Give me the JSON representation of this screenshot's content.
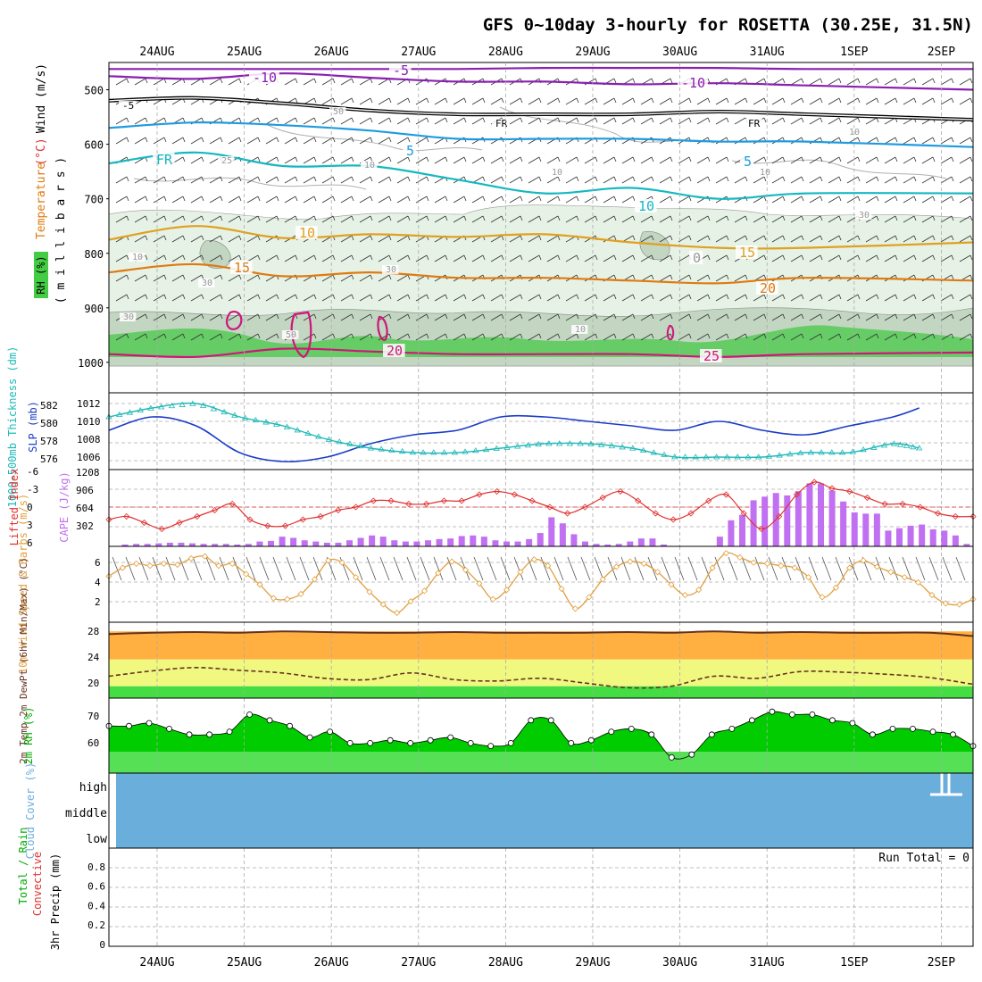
{
  "title": "GFS 0~10day 3-hourly for ROSETTA (30.25E, 31.5N)",
  "colors": {
    "temp_purple": "#8a1fb0",
    "fr_black": "#000000",
    "blue": "#1e9be0",
    "teal": "#15b8c0",
    "orange15": "#e0a020",
    "orange20": "#e07a10",
    "magenta": "#d0157a",
    "rh_light": "#e6f2e6",
    "rh_mid": "#c2d6c2",
    "rh_green": "#66cc66",
    "slp": "#1a3cc8",
    "thick": "#20b8b8",
    "li": "#e03030",
    "cape": "#c070f0",
    "wind": "#e0a040",
    "t2m_fill": "#ffb040",
    "dew_fill": "#f0f880",
    "low_fill": "#44dd44",
    "rh2_dark": "#00cc00",
    "rh2_light": "#55e055",
    "cloud": "#6aaedc",
    "grid": "#aaaaaa"
  },
  "chart_data": [
    {
      "type": "line",
      "panel": "upper-air",
      "ylabel_parts": [
        "RH (%)",
        "Temperature",
        "(°C)",
        "Wind (m/s)"
      ],
      "ylabel_millibars": "( m i l l i b a r s )",
      "x_dates": [
        "24AUG",
        "25AUG",
        "26AUG",
        "27AUG",
        "28AUG",
        "29AUG",
        "30AUG",
        "31AUG",
        "1SEP",
        "2SEP"
      ],
      "y_ticks": [
        "500",
        "600",
        "700",
        "800",
        "900",
        "1000"
      ],
      "ylim": [
        1000,
        450
      ],
      "isotherm_labels": [
        "-5",
        "-10",
        "-10",
        "-5",
        "FR",
        "FR",
        "FR",
        "5",
        "5",
        "10",
        "10",
        "15",
        "15",
        "20",
        "20",
        "25",
        "25",
        "10",
        "10",
        "10",
        "10",
        "30",
        "30",
        "30",
        "50",
        "10",
        "10",
        "0",
        "50",
        "30"
      ],
      "series": [
        {
          "name": "-10",
          "x": [
            0,
            2.5,
            4,
            5,
            6,
            7,
            8,
            9.3
          ],
          "values": [
            462,
            462,
            462,
            460,
            460,
            460,
            462,
            462
          ]
        },
        {
          "name": "-5",
          "x": [
            0,
            1,
            2,
            3,
            4,
            5,
            6,
            7,
            8,
            9.3
          ],
          "values": [
            475,
            480,
            470,
            478,
            485,
            485,
            490,
            488,
            492,
            500
          ]
        },
        {
          "name": "FR",
          "x": [
            0,
            1,
            2,
            3,
            4,
            5,
            6,
            7,
            8,
            9.3
          ],
          "values": [
            520,
            515,
            525,
            538,
            545,
            545,
            545,
            540,
            545,
            555
          ]
        },
        {
          "name": "5",
          "x": [
            0,
            1,
            2,
            3,
            4,
            5,
            6,
            7,
            8,
            9.3
          ],
          "values": [
            570,
            560,
            565,
            575,
            590,
            590,
            590,
            595,
            595,
            605
          ]
        },
        {
          "name": "10",
          "x": [
            0,
            1,
            2,
            3,
            4,
            5,
            6,
            7,
            8,
            9.3
          ],
          "values": [
            635,
            615,
            640,
            640,
            665,
            690,
            680,
            700,
            690,
            690
          ]
        },
        {
          "name": "15",
          "x": [
            0,
            1,
            2,
            3,
            4,
            5,
            6,
            7,
            8,
            9.3
          ],
          "values": [
            775,
            750,
            772,
            765,
            770,
            765,
            780,
            790,
            790,
            780
          ]
        },
        {
          "name": "20",
          "x": [
            0,
            1,
            2,
            3,
            4,
            5,
            6,
            7,
            8,
            9.3
          ],
          "values": [
            835,
            820,
            842,
            835,
            845,
            845,
            850,
            855,
            845,
            850
          ]
        },
        {
          "name": "25",
          "x": [
            0,
            1,
            2,
            3,
            4,
            5,
            6,
            7,
            8,
            9.3
          ],
          "values": [
            985,
            990,
            975,
            980,
            985,
            985,
            985,
            990,
            985,
            982
          ]
        }
      ]
    },
    {
      "type": "line",
      "panel": "slp-thickness",
      "ylabel": "SLP (mb)",
      "ylabel2": "1000-500mb Thickness (dm)",
      "left_ticks": [
        "582",
        "580",
        "578",
        "576"
      ],
      "right_ticks": [
        "1012",
        "1010",
        "1008",
        "1006"
      ],
      "series": [
        {
          "name": "SLP",
          "x": [
            0,
            0.5,
            1,
            1.5,
            2,
            2.5,
            3,
            3.5,
            4,
            4.5,
            5,
            5.5,
            6,
            6.5,
            7,
            7.5,
            8,
            8.5,
            9,
            9.3
          ],
          "values": [
            1009.5,
            1011,
            1010,
            1007,
            1006,
            1006.5,
            1008,
            1009,
            1009.5,
            1011,
            1011,
            1010.5,
            1010,
            1009.5,
            1010.5,
            1009.5,
            1009,
            1010,
            1011,
            1012
          ]
        },
        {
          "name": "Thickness",
          "x": [
            0,
            0.5,
            1,
            1.5,
            2,
            2.5,
            3,
            3.5,
            4,
            4.5,
            5,
            5.5,
            6,
            6.5,
            7,
            7.5,
            8,
            8.5,
            9,
            9.3
          ],
          "values": [
            581,
            582,
            582.5,
            581,
            580,
            578.5,
            577.5,
            577,
            577,
            577.5,
            578,
            578,
            577.5,
            576.5,
            576.5,
            576.5,
            577,
            577,
            578,
            577.5
          ]
        }
      ]
    },
    {
      "type": "bar",
      "panel": "cape-li",
      "ylabel": "CAPE (J/kg)",
      "ylabel2": "Lifted Index",
      "left_ticks": [
        "-6",
        "-3",
        "0",
        "3",
        "6"
      ],
      "right_ticks": [
        "1208",
        "906",
        "604",
        "302"
      ],
      "cape_values": [
        0,
        30,
        40,
        40,
        50,
        60,
        60,
        50,
        40,
        40,
        40,
        30,
        40,
        80,
        90,
        160,
        140,
        100,
        80,
        60,
        60,
        100,
        140,
        180,
        160,
        100,
        80,
        80,
        100,
        120,
        130,
        170,
        180,
        160,
        100,
        80,
        80,
        120,
        220,
        480,
        380,
        200,
        80,
        40,
        30,
        40,
        80,
        130,
        130,
        30,
        0,
        0,
        0,
        0,
        160,
        430,
        520,
        760,
        820,
        880,
        840,
        910,
        1040,
        1040,
        920,
        740,
        560,
        540,
        540,
        260,
        300,
        340,
        360,
        280,
        260,
        180,
        40
      ],
      "li_values": [
        2,
        1.5,
        2.5,
        3.5,
        2.5,
        1.5,
        0.5,
        -0.5,
        2,
        3,
        3,
        2,
        1.5,
        0.5,
        0,
        -1,
        -1,
        -0.5,
        -0.5,
        -1,
        -1,
        -2,
        -2.5,
        -2,
        -1,
        0,
        1,
        0,
        -1.5,
        -2.5,
        -1,
        1,
        2,
        1,
        -1,
        -2,
        1,
        3.5,
        1.5,
        -2,
        -4,
        -3,
        -2.5,
        -1.5,
        -0.5,
        -0.5,
        0,
        1,
        1.5,
        1.5
      ]
    },
    {
      "type": "line",
      "panel": "10m-wind",
      "ylabel": "10m Wind Speed & Barbs (m/s)",
      "left_ticks": [
        "6",
        "4",
        "2"
      ],
      "values": [
        4.4,
        5.2,
        5.6,
        5.4,
        5.6,
        5.5,
        6.1,
        6.3,
        5.4,
        5.6,
        4.6,
        3.6,
        2.3,
        2.2,
        2.7,
        4.1,
        5.9,
        5.7,
        4.3,
        2.9,
        1.7,
        0.9,
        2.0,
        3.0,
        4.7,
        5.8,
        5.0,
        3.7,
        2.2,
        3.1,
        4.8,
        6.0,
        5.4,
        3.2,
        1.3,
        2.4,
        4.1,
        5.3,
        5.8,
        5.6,
        4.8,
        3.6,
        2.6,
        3.1,
        5.2,
        6.6,
        6.2,
        5.7,
        5.6,
        5.4,
        5.2,
        4.3,
        2.4,
        3.3,
        5.2,
        5.9,
        5.3,
        4.8,
        4.3,
        3.8,
        2.6,
        1.8,
        1.7,
        2.2
      ]
    },
    {
      "type": "area",
      "panel": "2m-temp",
      "ylabel": "2m Temp 2m DewPt (6hr Min/Max) (°C)",
      "left_ticks": [
        "28",
        "24",
        "20"
      ],
      "temp_values": [
        27.8,
        28.0,
        28.1,
        28.0,
        28.2,
        28.1,
        28.0,
        28.0,
        28.1,
        28.0,
        28.0,
        28.0,
        28.1,
        28.0,
        28.2,
        28.0,
        28.1,
        28.0,
        28.0,
        28.0,
        27.5
      ],
      "dewpt_values": [
        21.5,
        22.3,
        22.8,
        22.4,
        22.0,
        21.2,
        21.0,
        22.0,
        21.0,
        20.8,
        21.2,
        20.5,
        19.8,
        20.0,
        21.5,
        21.2,
        22.2,
        22.1,
        21.8,
        21.3,
        20.3
      ]
    },
    {
      "type": "area",
      "panel": "2m-rh",
      "ylabel": "2m RH (%)",
      "left_ticks": [
        "70",
        "60"
      ],
      "values": [
        69,
        69,
        70,
        68,
        66,
        66,
        67,
        73,
        71,
        69,
        65,
        67,
        63,
        63,
        64,
        63,
        64,
        65,
        63,
        62,
        63,
        71,
        71,
        63,
        64,
        67,
        68,
        66,
        58,
        59,
        66,
        68,
        71,
        74,
        73,
        73,
        71,
        70,
        66,
        68,
        68,
        67,
        66,
        62
      ]
    },
    {
      "type": "area",
      "panel": "cloud-cover",
      "ylabel": "Cloud Cover (%)",
      "levels": [
        "high",
        "middle",
        "low"
      ]
    },
    {
      "type": "bar",
      "panel": "precip",
      "ylabel": "3hr Precip (mm)",
      "ylabel2": "Total / Rain",
      "ylabel3": "Convective",
      "run_total_label": "Run Total = 0",
      "left_ticks": [
        "0.8",
        "0.6",
        "0.4",
        "0.2",
        "0"
      ],
      "values": []
    }
  ]
}
